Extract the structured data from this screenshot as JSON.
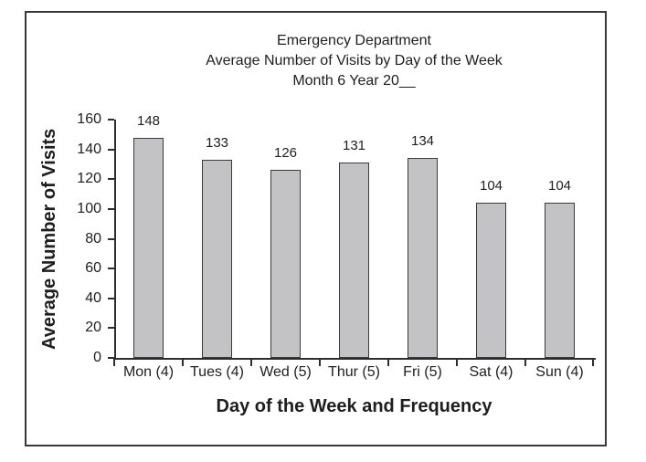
{
  "style": {
    "background": "#ffffff",
    "frame_border": "#383838",
    "axis_color": "#2e2e2e",
    "text_color": "#1e1e1e",
    "bar_fill": "#c3c3c6",
    "bar_border": "#3a3a3a"
  },
  "chart_data": {
    "type": "bar",
    "title_lines": [
      "Emergency Department",
      "Average Number of Visits by Day of the Week",
      "Month 6 Year 20__"
    ],
    "categories": [
      "Mon (4)",
      "Tues (4)",
      "Wed (5)",
      "Thur (5)",
      "Fri (5)",
      "Sat (4)",
      "Sun (4)"
    ],
    "values": [
      148,
      133,
      126,
      131,
      134,
      104,
      104
    ],
    "data_labels": [
      148,
      133,
      126,
      131,
      134,
      104,
      104
    ],
    "xlabel": "Day of the Week and Frequency",
    "ylabel": "Average Number of Visits",
    "ylim": [
      0,
      160
    ],
    "yticks": [
      0,
      20,
      40,
      60,
      80,
      100,
      120,
      140,
      160
    ],
    "grid": false,
    "legend": false
  }
}
